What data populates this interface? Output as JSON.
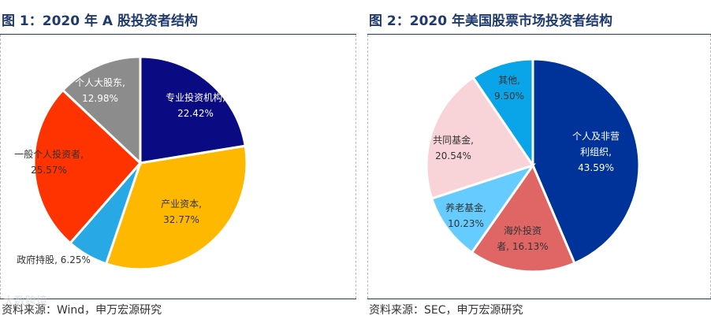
{
  "watermark": "大数跨境",
  "chart_data": [
    {
      "type": "pie",
      "title": "图 1：2020 年 A 股投资者结构",
      "source": "资料来源：Wind，申万宏源研究",
      "center": [
        178,
        163
      ],
      "radius": 135,
      "series": [
        {
          "values": [
            22.42,
            32.77,
            6.25,
            25.57,
            12.98
          ],
          "categories": [
            "专业投资机构",
            "产业资本",
            "政府持股",
            "一般个人投资者",
            "个人大股东"
          ],
          "labels": [
            {
              "lines": [
                "专业投资机构,",
                "22.42%"
              ],
              "text_color": "#ffffff",
              "pos": [
                248,
                84
              ]
            },
            {
              "lines": [
                "产业资本,",
                "32.77%"
              ],
              "text_color": "#333333",
              "pos": [
                230,
                219
              ]
            },
            {
              "lines": [
                "政府持股, 6.25%"
              ],
              "text_color": "#333333",
              "pos": [
                68,
                290
              ]
            },
            {
              "lines": [
                "一般个人投资者,",
                "25.57%"
              ],
              "text_color": "#333333",
              "pos": [
                62,
                156
              ]
            },
            {
              "lines": [
                "个人大股东,",
                "12.98%"
              ],
              "text_color": "#ffffff",
              "pos": [
                127,
                65
              ]
            }
          ],
          "colors": [
            "#0a0a82",
            "#ffb800",
            "#29a8e6",
            "#ff3300",
            "#8c8c8c"
          ]
        }
      ]
    },
    {
      "type": "pie",
      "title": "图 2：2020 年美国股票市场投资者结构",
      "source": "资料来源：SEC，申万宏源研究",
      "center": [
        210,
        166
      ],
      "radius": 135,
      "series": [
        {
          "values": [
            43.59,
            16.13,
            10.23,
            20.54,
            9.5
          ],
          "categories": [
            "个人及非营利组织",
            "海外投资者",
            "养老基金",
            "共同基金",
            "其他"
          ],
          "labels": [
            {
              "lines": [
                "个人及非营",
                "利组织,",
                "43.59%"
              ],
              "text_color": "#ffffff",
              "pos": [
                290,
                133
              ]
            },
            {
              "lines": [
                "海外投资",
                "者, 16.13%"
              ],
              "text_color": "#333333",
              "pos": [
                197,
                253
              ]
            },
            {
              "lines": [
                "养老基金,",
                "10.23%"
              ],
              "text_color": "#333333",
              "pos": [
                125,
                224
              ]
            },
            {
              "lines": [
                "共同基金,",
                "20.54%"
              ],
              "text_color": "#333333",
              "pos": [
                109,
                138
              ]
            },
            {
              "lines": [
                "其他,",
                "9.50%"
              ],
              "text_color": "#333333",
              "pos": [
                180,
                62
              ]
            }
          ],
          "colors": [
            "#003399",
            "#e06666",
            "#66ccff",
            "#f8d4d8",
            "#0aa5e8"
          ]
        }
      ]
    }
  ]
}
